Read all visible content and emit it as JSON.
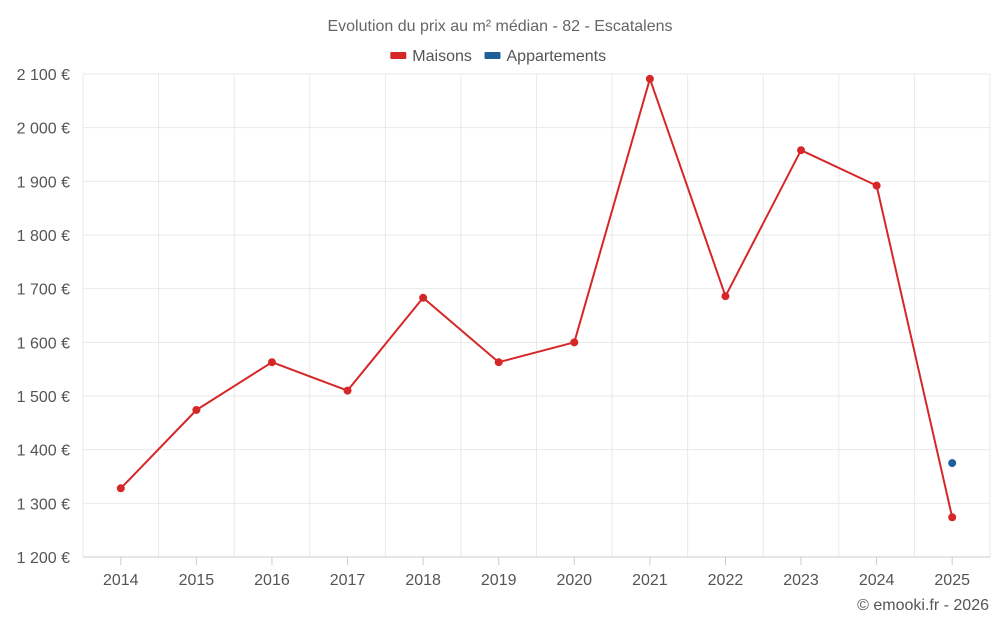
{
  "chart_data": {
    "type": "line",
    "title": "Evolution du prix au m² médian - 82 - Escatalens",
    "categories": [
      "2014",
      "2015",
      "2016",
      "2017",
      "2018",
      "2019",
      "2020",
      "2021",
      "2022",
      "2023",
      "2024",
      "2025"
    ],
    "series": [
      {
        "name": "Maisons",
        "color": "#d62728",
        "values": [
          1328,
          1474,
          1563,
          1510,
          1683,
          1563,
          1600,
          2091,
          1686,
          1958,
          1892,
          1274
        ]
      },
      {
        "name": "Appartements",
        "color": "#1f5f99",
        "values": [
          null,
          null,
          null,
          null,
          null,
          null,
          null,
          null,
          null,
          null,
          null,
          1375
        ]
      }
    ],
    "y_ticks": [
      1200,
      1300,
      1400,
      1500,
      1600,
      1700,
      1800,
      1900,
      2000,
      2100
    ],
    "y_tick_labels": [
      "1 200 €",
      "1 300 €",
      "1 400 €",
      "1 500 €",
      "1 600 €",
      "1 700 €",
      "1 800 €",
      "1 900 €",
      "2 000 €",
      "2 100 €"
    ],
    "ylim": [
      1200,
      2100
    ],
    "xlabel": "",
    "ylabel": "",
    "grid": true,
    "legend_position": "top-center"
  },
  "credit": "© emooki.fr - 2026"
}
